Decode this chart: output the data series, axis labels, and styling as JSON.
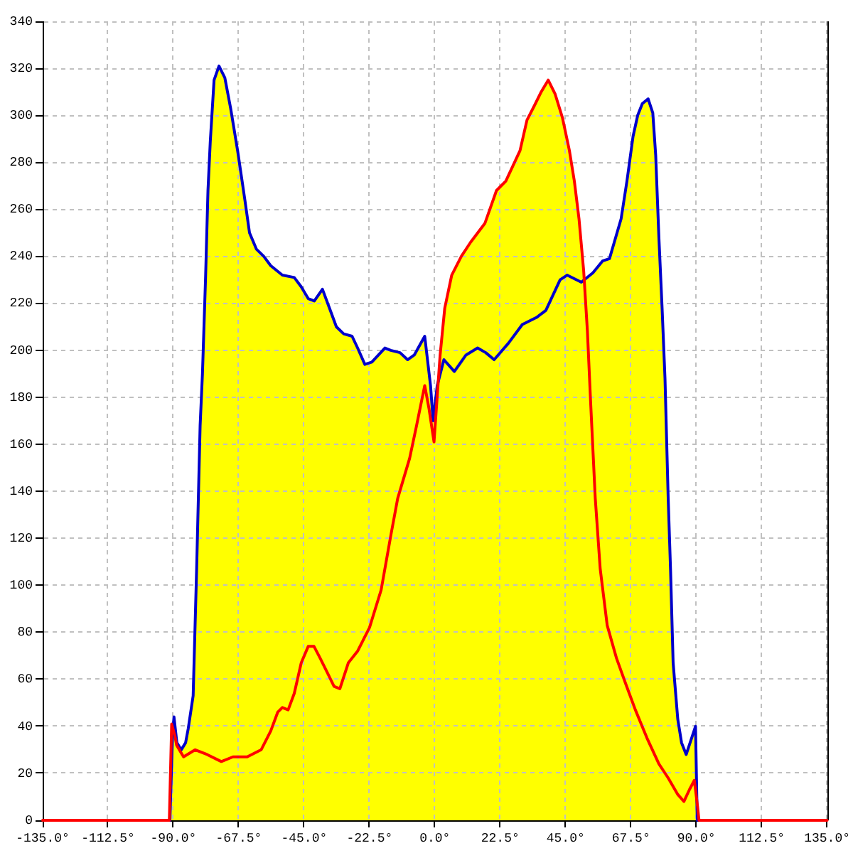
{
  "chart_data": {
    "type": "area",
    "xlim": [
      -135,
      135
    ],
    "xticks": [
      {
        "value": -135,
        "label": "-135.0°"
      },
      {
        "value": -112.5,
        "label": "-112.5°"
      },
      {
        "value": -90,
        "label": "-90.0°"
      },
      {
        "value": -67.5,
        "label": "-67.5°"
      },
      {
        "value": -45,
        "label": "-45.0°"
      },
      {
        "value": -22.5,
        "label": "-22.5°"
      },
      {
        "value": 0,
        "label": "0.0°"
      },
      {
        "value": 22.5,
        "label": "22.5°"
      },
      {
        "value": 45,
        "label": "45.0°"
      },
      {
        "value": 67.5,
        "label": "67.5°"
      },
      {
        "value": 90,
        "label": "90.0°"
      },
      {
        "value": 112.5,
        "label": "112.5°"
      },
      {
        "value": 135,
        "label": "135.0°"
      }
    ],
    "ylim": [
      0,
      340
    ],
    "yticks": [
      0,
      20,
      40,
      60,
      80,
      100,
      120,
      140,
      160,
      180,
      200,
      220,
      240,
      260,
      280,
      300,
      320,
      340
    ],
    "grid": true,
    "series": [
      {
        "color": "#ffff00",
        "x": [
          -91.4,
          -90.6,
          -90.1,
          -89.8,
          -88.8,
          -87.3,
          -85.8,
          -84.9,
          -83.2,
          -82.0,
          -80.8,
          -80.0,
          -78.9,
          -78.1,
          -77.3,
          -76.0,
          -74.3,
          -72.3,
          -70.3,
          -67.9,
          -65.4,
          -63.8,
          -61.4,
          -58.9,
          -56.5,
          -52.5,
          -48.4,
          -46.0,
          -43.6,
          -41.5,
          -38.7,
          -36.3,
          -33.9,
          -31.4,
          -28.5,
          -26.6,
          -24.1,
          -21.7,
          -17.2,
          -15.2,
          -12.0,
          -9.4,
          -7.1,
          -3.5,
          -1.5,
          -0.6,
          0.8,
          1.2,
          1.8,
          3.4,
          5.8,
          9.1,
          12.3,
          17.2,
          21.2,
          24.4,
          29.3,
          31.7,
          34.2,
          36.6,
          39.0,
          41.4,
          43.9,
          46.3,
          48.0,
          49.6,
          51.2,
          51.4,
          54.4,
          57.7,
          60.1,
          64.1,
          66.1,
          68.2,
          69.8,
          71.4,
          73.4,
          75.0,
          76.0,
          77.1,
          78.2,
          79.2,
          80.3,
          81.1,
          82.0,
          83.6,
          84.9,
          86.5,
          88.1,
          89.7,
          90.2,
          90.4,
          90.9
        ],
        "values": [
          0,
          41,
          39,
          44,
          33,
          30,
          33,
          39,
          53,
          107,
          168,
          190,
          232,
          268,
          289,
          315,
          321,
          316,
          303,
          285,
          264,
          250,
          243,
          240,
          236,
          232,
          231,
          227,
          222,
          221,
          226,
          218,
          210,
          207,
          206,
          201,
          194,
          195,
          201,
          200,
          199,
          196,
          198,
          206,
          185,
          170,
          185,
          187,
          198,
          218,
          232,
          240,
          246,
          254,
          268,
          272,
          285,
          298,
          304,
          310,
          315,
          309,
          299,
          285,
          272,
          256,
          234,
          230,
          233,
          238,
          239,
          256,
          272,
          291,
          300,
          305,
          307,
          301,
          283,
          248,
          218,
          188,
          137,
          107,
          67,
          43,
          33,
          28,
          34,
          40,
          8,
          6,
          0
        ]
      },
      {
        "type": "line",
        "color": "#0000cc",
        "x": [
          -91.2,
          -90.3,
          -89.8,
          -88.8,
          -87.3,
          -85.8,
          -84.9,
          -83.2,
          -82.0,
          -80.8,
          -80.0,
          -78.9,
          -78.1,
          -77.3,
          -76.0,
          -74.3,
          -72.3,
          -70.3,
          -67.9,
          -65.4,
          -63.8,
          -61.4,
          -58.9,
          -56.5,
          -52.5,
          -48.4,
          -46.0,
          -43.6,
          -41.5,
          -38.7,
          -36.3,
          -33.9,
          -31.4,
          -28.5,
          -26.6,
          -24.1,
          -21.7,
          -17.2,
          -15.2,
          -12.0,
          -9.4,
          -7.1,
          -3.5,
          -1.5,
          -0.6,
          0.8,
          3.1,
          6.7,
          10.7,
          14.7,
          17.5,
          20.4,
          25.3,
          30.1,
          35.0,
          38.2,
          43.1,
          45.5,
          50.4,
          54.4,
          57.7,
          60.1,
          64.1,
          66.1,
          68.2,
          69.8,
          71.4,
          73.4,
          75.0,
          76.0,
          77.1,
          78.2,
          79.2,
          80.3,
          81.1,
          82.0,
          83.6,
          84.9,
          86.5,
          88.1,
          89.7,
          90.3
        ],
        "values": [
          0,
          36,
          44,
          33,
          30,
          33,
          39,
          53,
          107,
          168,
          190,
          232,
          268,
          289,
          315,
          321,
          316,
          303,
          285,
          264,
          250,
          243,
          240,
          236,
          232,
          231,
          227,
          222,
          221,
          226,
          218,
          210,
          207,
          206,
          201,
          194,
          195,
          201,
          200,
          199,
          196,
          198,
          206,
          185,
          170,
          185,
          196,
          191,
          198,
          201,
          199,
          196,
          203,
          211,
          214,
          217,
          230,
          232,
          229,
          233,
          238,
          239,
          256,
          272,
          291,
          300,
          305,
          307,
          301,
          283,
          248,
          218,
          188,
          137,
          107,
          67,
          43,
          33,
          28,
          34,
          40,
          0
        ]
      },
      {
        "type": "line",
        "color": "#ff0000",
        "x": [
          -135,
          -91.4,
          -90.6,
          -89.5,
          -88.9,
          -86.5,
          -82.5,
          -78.4,
          -73.5,
          -69.5,
          -64.6,
          -59.8,
          -56.5,
          -54.1,
          -52.5,
          -50.5,
          -48.4,
          -46.0,
          -43.6,
          -41.6,
          -39.5,
          -37.1,
          -34.7,
          -32.7,
          -29.8,
          -26.6,
          -22.5,
          -18.5,
          -15.2,
          -12.8,
          -8.7,
          -6.3,
          -3.5,
          -2.0,
          -0.3,
          1.8,
          3.4,
          5.8,
          9.1,
          12.3,
          17.2,
          21.2,
          24.4,
          29.3,
          31.7,
          34.2,
          36.6,
          39.0,
          41.4,
          43.9,
          46.3,
          48.0,
          49.6,
          51.2,
          52.5,
          53.6,
          55.2,
          56.9,
          59.3,
          62.5,
          65.7,
          69.0,
          73.0,
          77.1,
          80.3,
          83.6,
          85.7,
          87.6,
          89.3,
          90.4,
          90.9,
          135
        ],
        "values": [
          0,
          0,
          41,
          36,
          32,
          27,
          30,
          28,
          25,
          27,
          27,
          30,
          38,
          46,
          48,
          47,
          54,
          67,
          74,
          74,
          69,
          63,
          57,
          56,
          67,
          72,
          82,
          98,
          121,
          137,
          154,
          168,
          185,
          175,
          161,
          198,
          218,
          232,
          240,
          246,
          254,
          268,
          272,
          285,
          298,
          304,
          310,
          315,
          309,
          299,
          285,
          272,
          256,
          234,
          208,
          178,
          137,
          107,
          83,
          69,
          58,
          47,
          35,
          24,
          18,
          11,
          8,
          13,
          17,
          6,
          0,
          0
        ]
      }
    ]
  }
}
